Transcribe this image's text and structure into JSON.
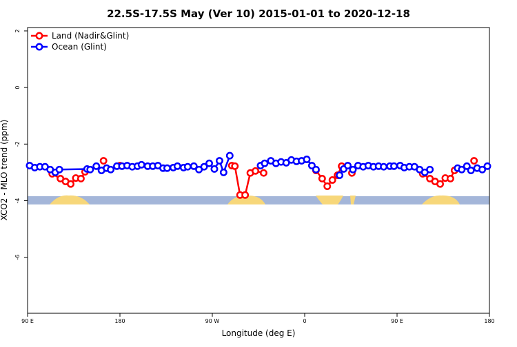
{
  "chart_data": {
    "type": "line",
    "title": "22.5S-17.5S May (Ver 10)   2015-01-01 to 2020-12-18",
    "xlabel": "Longitude (deg E)",
    "ylabel": "XCO2 - MLO trend (ppm)",
    "xlim": [
      90,
      540
    ],
    "ylim": [
      -7.98,
      2.12
    ],
    "xticks": [
      {
        "value": 90,
        "label": "90 E"
      },
      {
        "value": 180,
        "label": "180"
      },
      {
        "value": 270,
        "label": "90 W"
      },
      {
        "value": 360,
        "label": "0"
      },
      {
        "value": 450,
        "label": "90 E"
      },
      {
        "value": 540,
        "label": "180"
      }
    ],
    "yticks": [
      2,
      0,
      -2,
      -4,
      -6
    ],
    "legend": "top-left",
    "series": [
      {
        "name": "Land (Nadir&Glint)",
        "color": "#ff0000",
        "x": [
          114,
          122,
          127,
          132,
          137,
          142,
          146,
          155,
          164,
          172,
          180,
          235,
          289,
          292,
          297,
          302,
          307,
          312,
          320,
          345,
          371,
          377,
          382,
          387,
          392,
          396,
          401,
          406,
          440,
          475,
          482,
          487,
          492,
          497,
          502,
          506,
          515,
          525
        ],
        "values": [
          -3.05,
          -3.22,
          -3.32,
          -3.41,
          -3.2,
          -3.22,
          -2.98,
          null,
          -2.59,
          null,
          -2.76,
          null,
          -2.76,
          -2.78,
          -3.8,
          -3.8,
          -3.02,
          -2.95,
          -3.02,
          null,
          -2.93,
          -3.22,
          -3.49,
          -3.27,
          -3.1,
          -2.78,
          null,
          -3.02,
          null,
          -3.05,
          -3.22,
          -3.32,
          -3.41,
          -3.2,
          -3.22,
          -2.93,
          null,
          -2.59
        ]
      },
      {
        "name": "Ocean (Glint)",
        "color": "#0000ff",
        "x": [
          92,
          97,
          102,
          107,
          112,
          117,
          121,
          148,
          151,
          157,
          162,
          167,
          171,
          177,
          182,
          187,
          192,
          197,
          201,
          207,
          212,
          217,
          222,
          226,
          232,
          236,
          242,
          246,
          252,
          257,
          262,
          267,
          272,
          277,
          281,
          287,
          300,
          317,
          321,
          327,
          332,
          337,
          342,
          347,
          352,
          357,
          362,
          367,
          371,
          380,
          394,
          398,
          402,
          407,
          412,
          417,
          422,
          427,
          432,
          437,
          443,
          447,
          453,
          457,
          462,
          467,
          472,
          477,
          482,
          495,
          509,
          513,
          518,
          522,
          528,
          533,
          538
        ],
        "values": [
          -2.76,
          -2.83,
          -2.8,
          -2.8,
          -2.9,
          -3.0,
          -2.9,
          -2.88,
          -2.9,
          -2.78,
          -2.93,
          -2.85,
          -2.9,
          -2.78,
          -2.78,
          -2.76,
          -2.8,
          -2.78,
          -2.73,
          -2.78,
          -2.78,
          -2.76,
          -2.85,
          -2.85,
          -2.83,
          -2.78,
          -2.83,
          -2.8,
          -2.78,
          -2.9,
          -2.8,
          -2.68,
          -2.88,
          -2.59,
          -3.0,
          -2.41,
          null,
          -2.76,
          -2.68,
          -2.59,
          -2.68,
          -2.63,
          -2.66,
          -2.56,
          -2.61,
          -2.59,
          -2.54,
          -2.76,
          -2.9,
          null,
          -3.1,
          -2.88,
          -2.76,
          -2.9,
          -2.76,
          -2.8,
          -2.76,
          -2.8,
          -2.78,
          -2.8,
          -2.78,
          -2.78,
          -2.76,
          -2.83,
          -2.8,
          -2.8,
          -2.9,
          -3.0,
          -2.9,
          null,
          -2.85,
          -2.9,
          -2.78,
          -2.93,
          -2.85,
          -2.9,
          -2.78
        ]
      }
    ]
  }
}
